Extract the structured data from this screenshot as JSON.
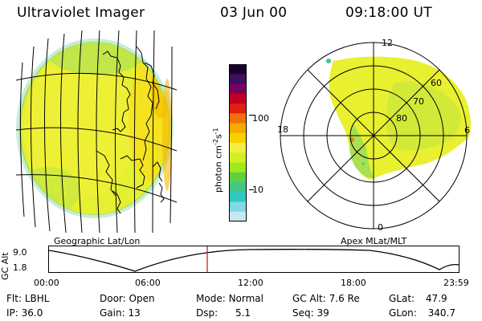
{
  "header": {
    "instrument": "Ultraviolet Imager",
    "date": "03 Jun 00",
    "time": "09:18:00 UT"
  },
  "panels": {
    "left_label": "Geographic Lat/Lon",
    "right_label": "Apex MLat/MLT"
  },
  "colorbar": {
    "unit_main": "photon cm",
    "unit_exp1": "-2",
    "unit_s": "s",
    "unit_exp2": "-1",
    "tick_high": "100",
    "tick_low": "10",
    "colors": [
      "#1a0030",
      "#3a1060",
      "#7a0060",
      "#c00020",
      "#e02010",
      "#f07010",
      "#f8a800",
      "#f8d000",
      "#f0f040",
      "#d0f020",
      "#a0e820",
      "#60d040",
      "#40c880",
      "#30c8c0",
      "#80d8e8",
      "#c8e8f0"
    ]
  },
  "polar": {
    "mlt_top": "12",
    "mlt_left": "18",
    "mlt_right": "6",
    "mlt_bottom": "0",
    "lat_60": "60",
    "lat_70": "70",
    "lat_80": "80"
  },
  "altitude_plot": {
    "ylabel": "GC Alt",
    "y_ticks": [
      "9.0",
      "1.8"
    ],
    "x_ticks": [
      "00:00",
      "06:00",
      "12:00",
      "18:00",
      "23:59"
    ],
    "marker_color": "#d02020"
  },
  "status": {
    "flt_label": "Flt:",
    "flt_value": "LBHL",
    "ip_label": "IP:",
    "ip_value": "36.0",
    "door_label": "Door:",
    "door_value": "Open",
    "gain_label": "Gain:",
    "gain_value": "13",
    "mode_label": "Mode:",
    "mode_value": "Normal",
    "dsp_label": "Dsp:",
    "dsp_value": "5.1",
    "gcalt_label": "GC Alt:",
    "gcalt_value": "7.6 Re",
    "seq_label": "Seq:",
    "seq_value": "39",
    "glat_label": "GLat:",
    "glat_value": "47.9",
    "glon_label": "GLon:",
    "glon_value": "340.7"
  }
}
